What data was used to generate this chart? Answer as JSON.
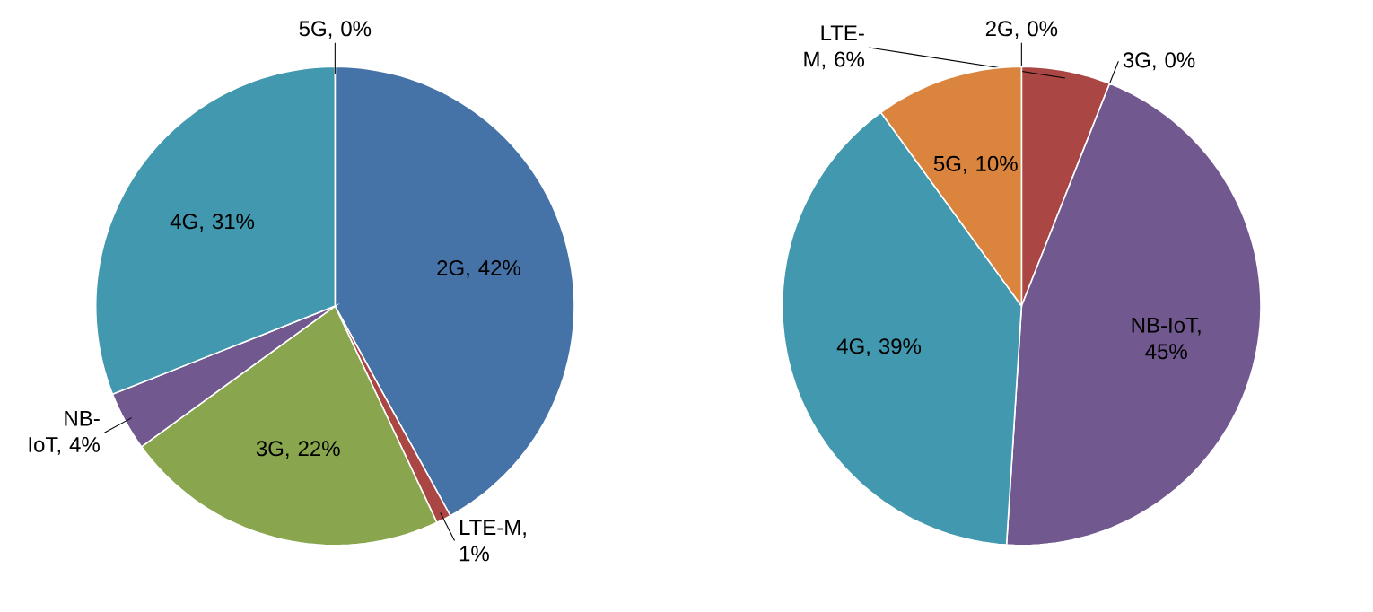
{
  "chart_data": [
    {
      "type": "pie",
      "categories": [
        null,
        null,
        null,
        null,
        null,
        null
      ],
      "values": [
        42,
        1,
        22,
        4,
        31,
        0
      ],
      "value_labels": [
        "2G, 42%",
        "LTE-M, 1%",
        "3G, 22%",
        "NB-IoT, 4%",
        "4G, 31%",
        "5G, 0%"
      ],
      "colors": [
        "#4572a7",
        "#aa4643",
        "#89a54e",
        "#71588f",
        "#4198af",
        "#db843d"
      ]
    },
    {
      "type": "pie",
      "categories": [
        null,
        null,
        null,
        null,
        null,
        null
      ],
      "values": [
        0,
        6,
        0,
        45,
        39,
        10
      ],
      "value_labels": [
        "2G, 0%",
        "LTE-M, 6%",
        "3G, 0%",
        "NB-IoT, 45%",
        "4G, 39%",
        "5G, 10%"
      ],
      "colors": [
        "#4572a7",
        "#aa4643",
        "#89a54e",
        "#71588f",
        "#4198af",
        "#db843d"
      ]
    }
  ]
}
